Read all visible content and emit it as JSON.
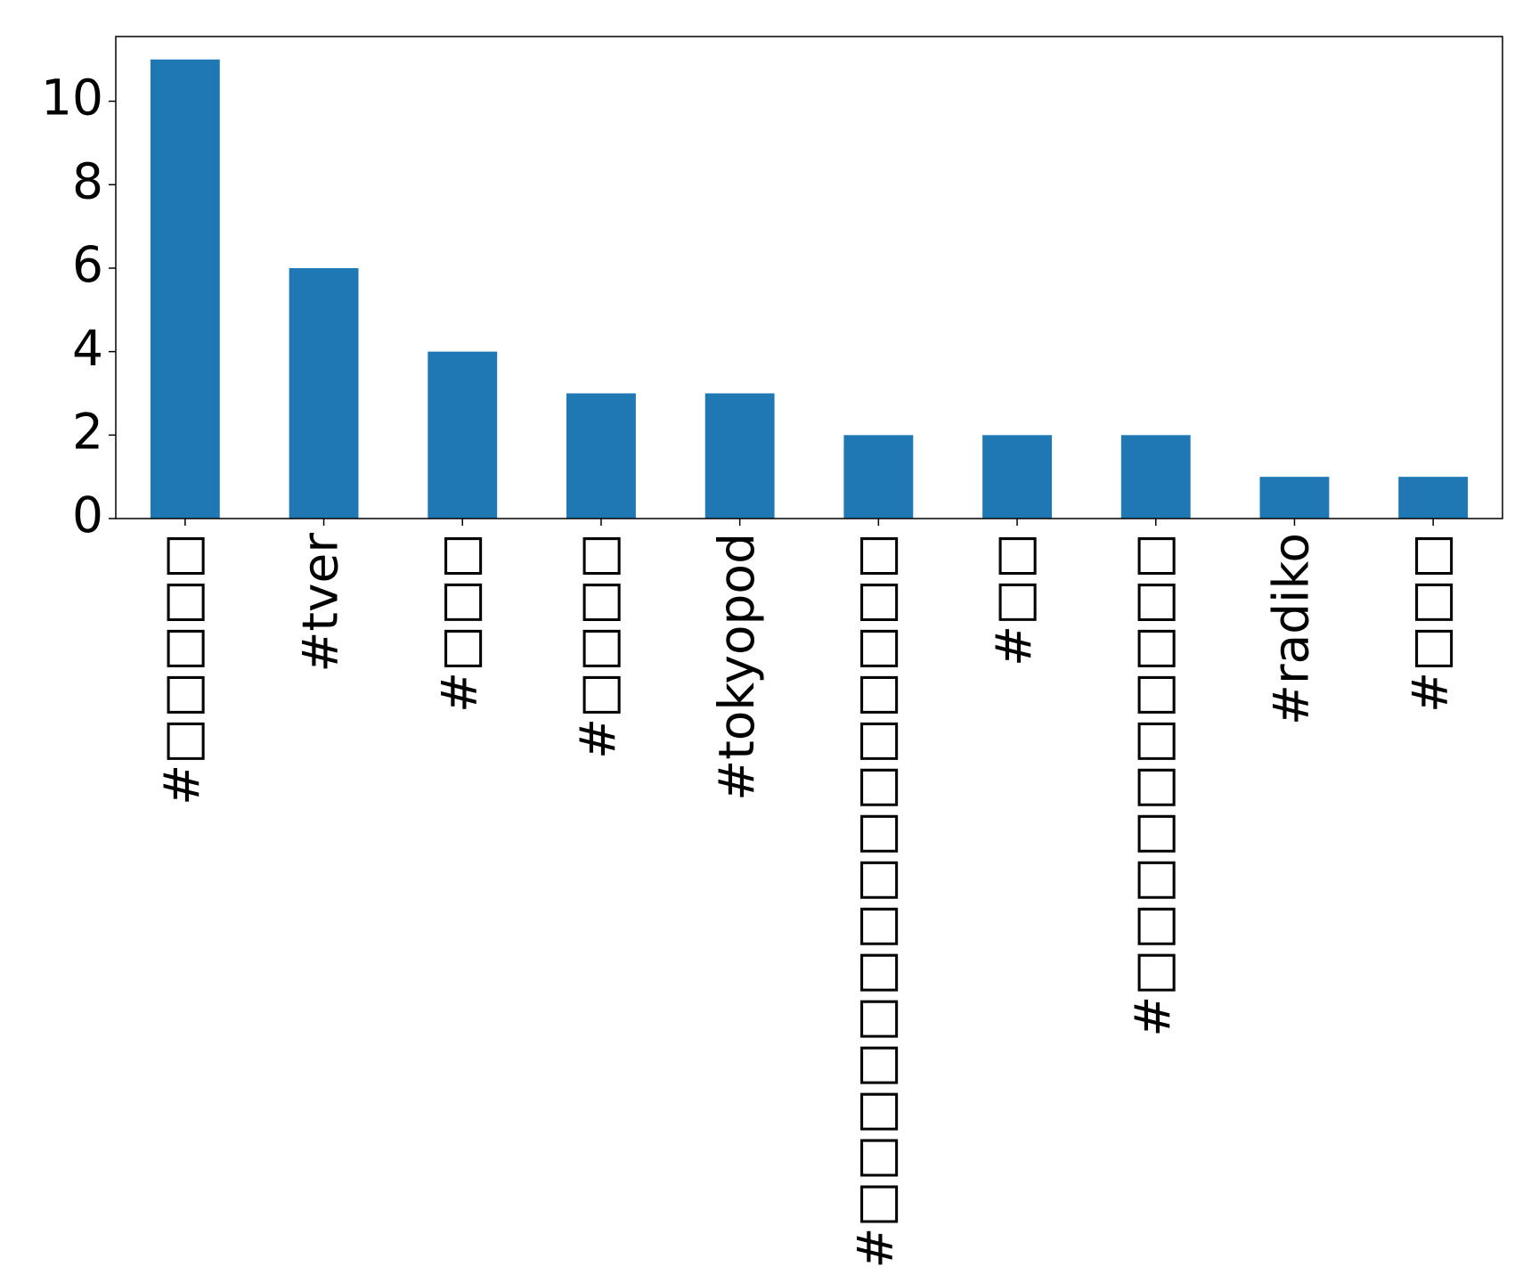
{
  "chart_data": {
    "type": "bar",
    "categories": [
      "#□□□□□",
      "#tver",
      "#□□□",
      "#□□□□",
      "#tokyopod",
      "#□□□□□□□□□□□□□□□",
      "#□□",
      "#□□□□□□□□□□",
      "#radiko",
      "#□□□"
    ],
    "values": [
      11,
      6,
      4,
      3,
      3,
      2,
      2,
      2,
      1,
      1
    ],
    "color": "#1f77b4",
    "ylim": [
      0,
      11.55
    ],
    "yticks": [
      0,
      2,
      4,
      6,
      8,
      10
    ],
    "grid": false
  }
}
